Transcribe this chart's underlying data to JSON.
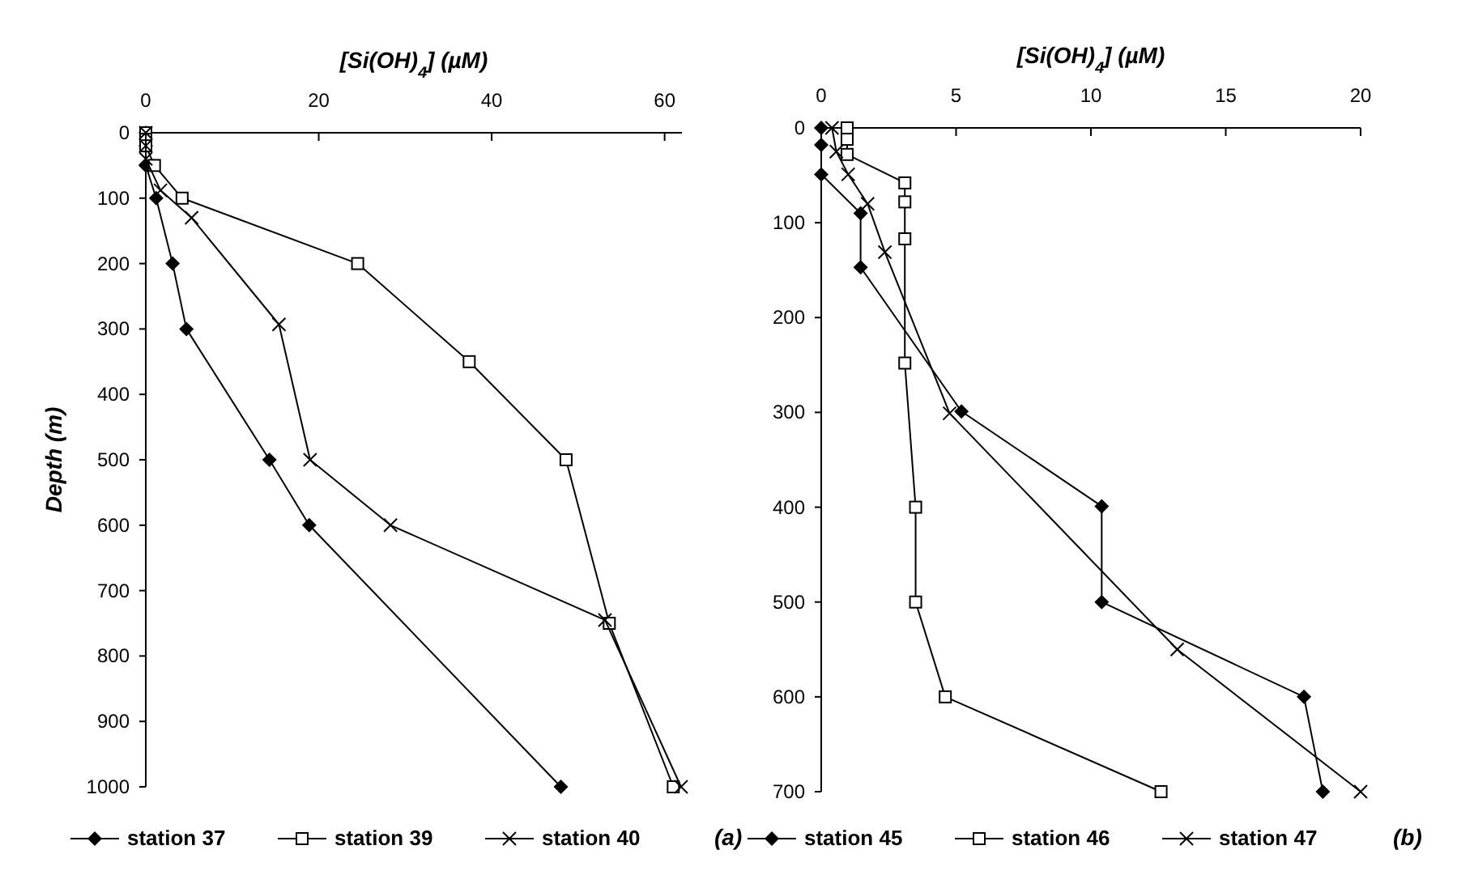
{
  "chart_data": [
    {
      "type": "line",
      "xlabel": "[Si(OH)$_{4}$] (µM)",
      "ylabel": "Depth (m)",
      "xlim": [
        0,
        62
      ],
      "xticks": [
        0,
        20,
        40,
        60
      ],
      "ylim": [
        1000,
        0
      ],
      "yticks": [
        0,
        100,
        200,
        300,
        400,
        500,
        600,
        700,
        800,
        900,
        1000
      ],
      "legend": "bottom",
      "annotations": [
        "(a)"
      ],
      "series": [
        {
          "name": "station 37",
          "color": "#000000",
          "marker": "diamond",
          "x": [
            0,
            0,
            0,
            1.2,
            3.1,
            4.7,
            14.3,
            18.9,
            48
          ],
          "values": [
            0,
            20,
            50,
            100,
            200,
            300,
            500,
            600,
            1000
          ]
        },
        {
          "name": "station 39",
          "color": "#000000",
          "marker": "square",
          "x": [
            0,
            0,
            0,
            1,
            4.2,
            24.5,
            37.4,
            48.6,
            53.6,
            61
          ],
          "values": [
            0,
            10,
            20,
            50,
            100,
            200,
            350,
            500,
            750,
            1000
          ]
        },
        {
          "name": "station 40",
          "color": "#000000",
          "marker": "cross",
          "x": [
            0,
            0,
            0,
            1.7,
            5.3,
            15.4,
            19,
            28.3,
            53.1,
            61.9
          ],
          "values": [
            0,
            20,
            40,
            88,
            130,
            293,
            500,
            600,
            745,
            1000
          ]
        }
      ]
    },
    {
      "type": "line",
      "xlabel": "[Si(OH)$_{4}$] (µM)",
      "xlim": [
        0,
        20
      ],
      "xticks": [
        0,
        5,
        10,
        15,
        20
      ],
      "ylim": [
        700,
        0
      ],
      "yticks": [
        0,
        100,
        200,
        300,
        400,
        500,
        600,
        700
      ],
      "legend": "bottom",
      "annotations": [
        "(b)"
      ],
      "series": [
        {
          "name": "station 45",
          "color": "#000000",
          "marker": "diamond",
          "x": [
            0,
            0,
            0,
            1.46,
            1.46,
            5.2,
            10.4,
            10.4,
            17.9,
            18.6
          ],
          "values": [
            0,
            18,
            49,
            90,
            147,
            299,
            399,
            500,
            600,
            700
          ]
        },
        {
          "name": "station 46",
          "color": "#000000",
          "marker": "square",
          "x": [
            0.96,
            0.96,
            0.96,
            3.1,
            3.1,
            3.1,
            3.1,
            3.5,
            3.5,
            4.6,
            12.6
          ],
          "values": [
            0,
            12,
            28,
            58,
            78,
            117,
            248,
            400,
            500,
            600,
            700
          ]
        },
        {
          "name": "station 47",
          "color": "#000000",
          "marker": "cross",
          "x": [
            0.4,
            0.56,
            1,
            1.72,
            2.36,
            4.76,
            13.2,
            20
          ],
          "values": [
            0,
            25,
            49,
            80,
            131,
            301,
            550,
            700
          ]
        }
      ]
    }
  ]
}
